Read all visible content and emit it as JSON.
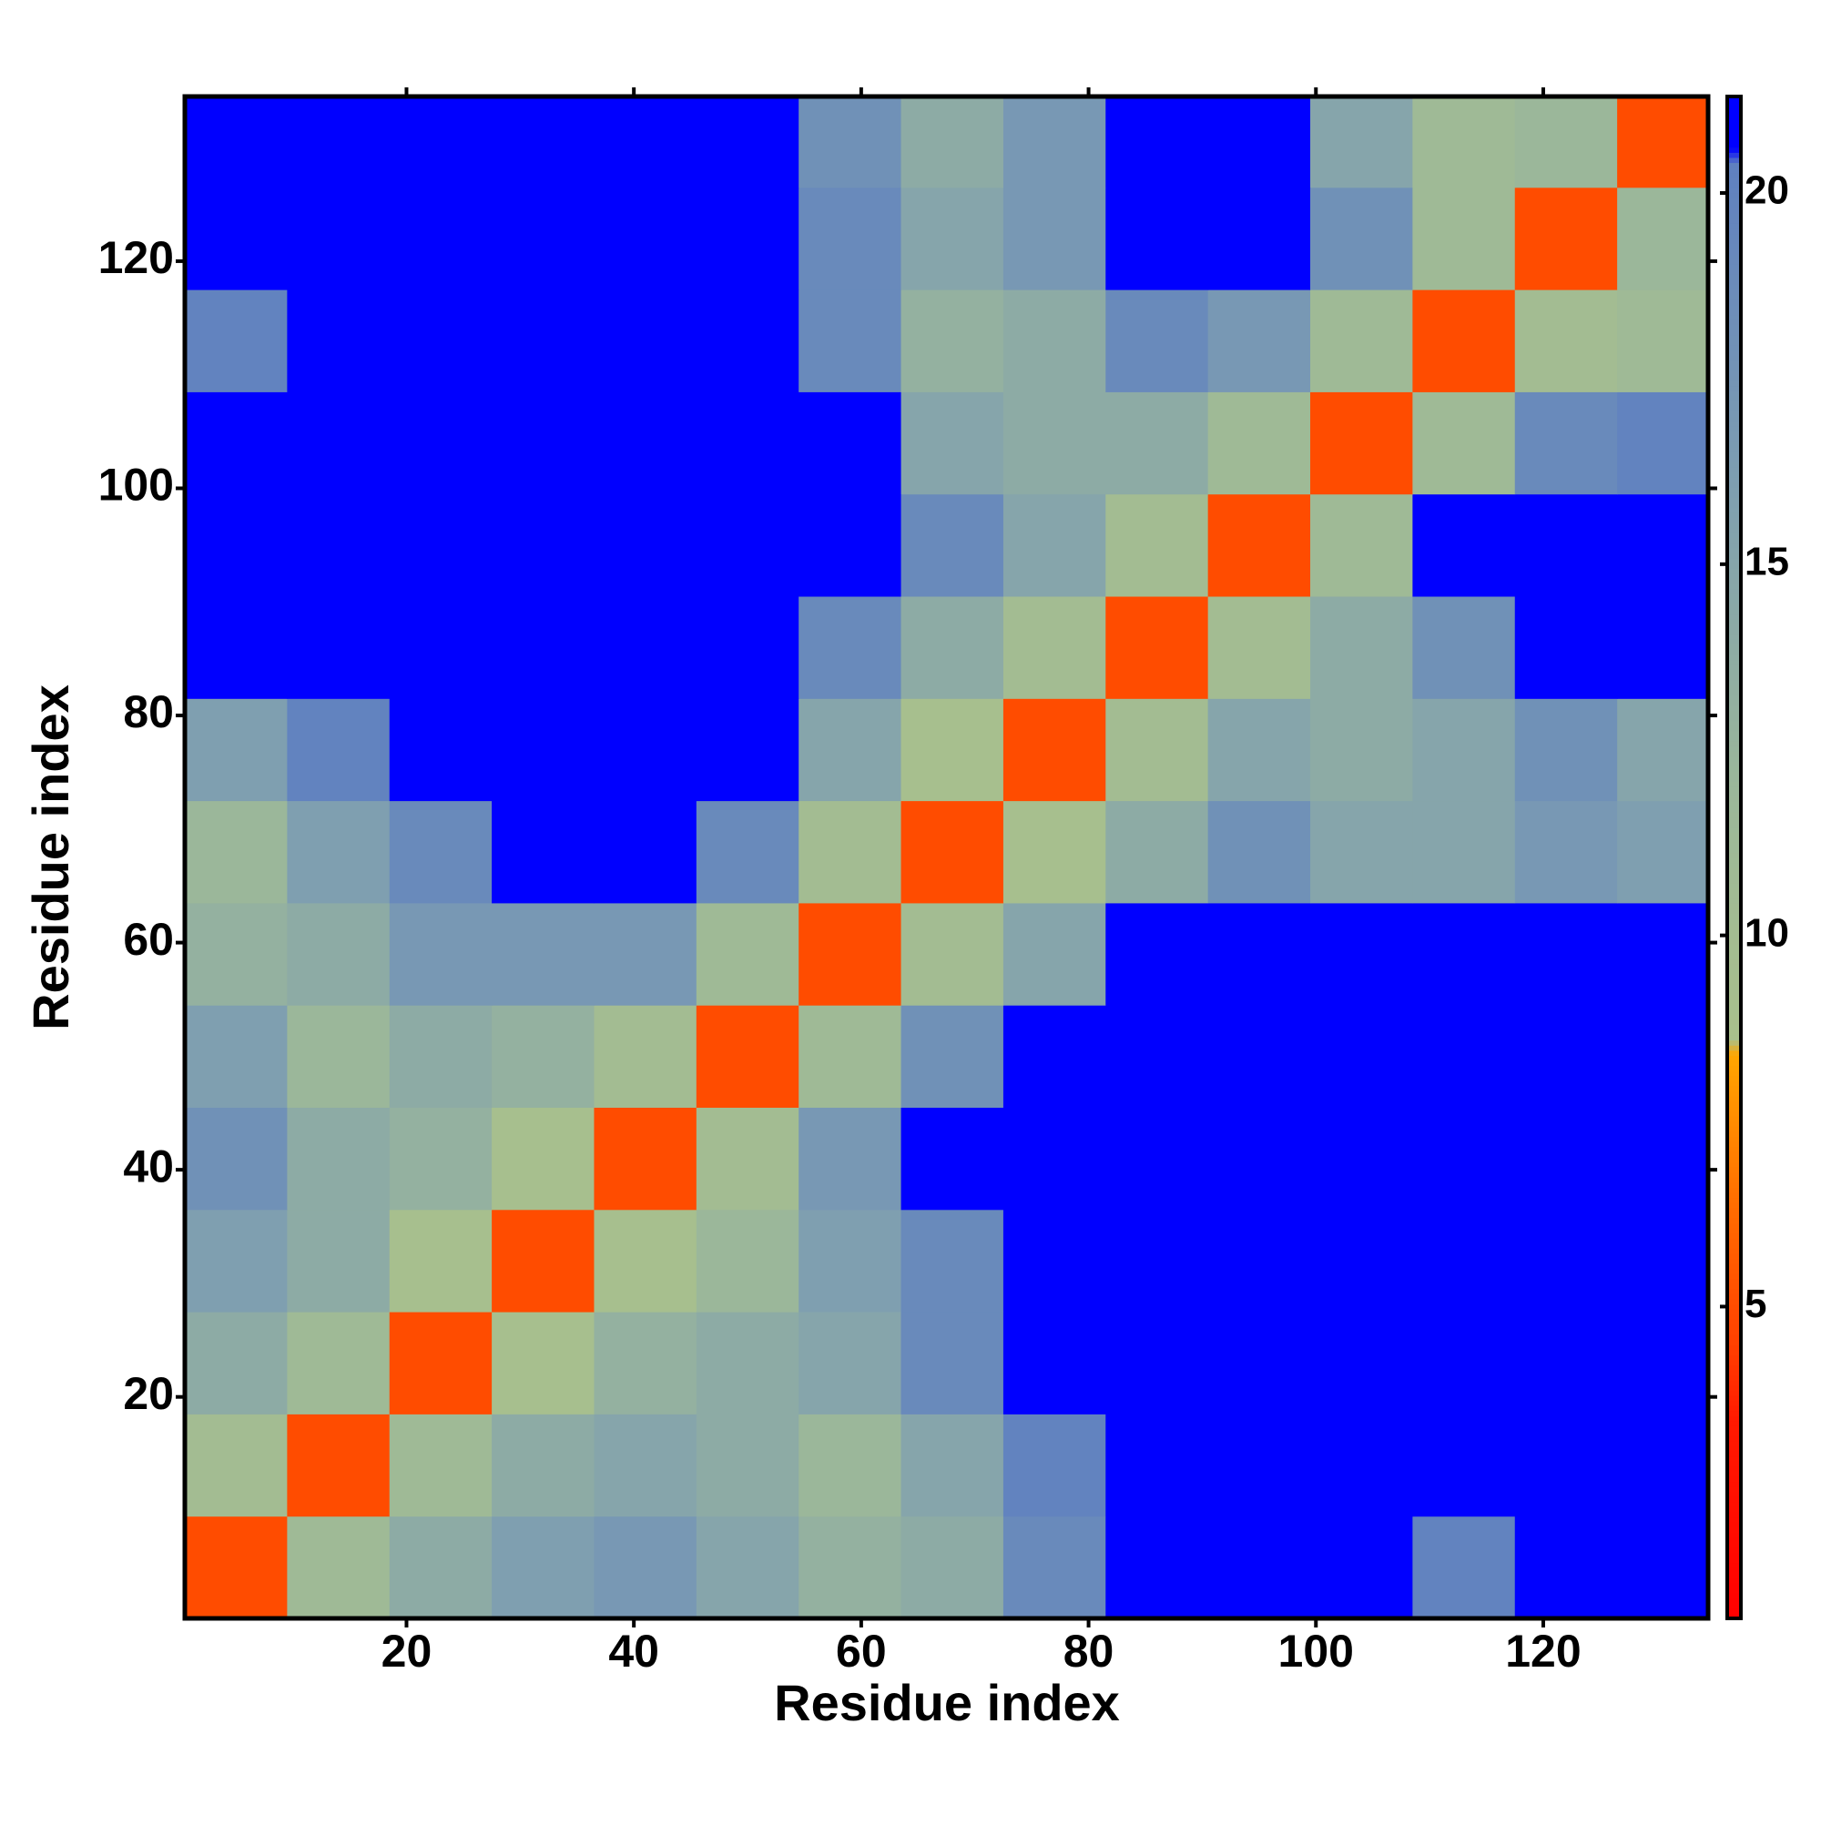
{
  "chart_data": {
    "type": "heatmap",
    "x_label": "Residue index",
    "y_label": "Residue index",
    "x": [
      5,
      14,
      23,
      32,
      41,
      50,
      59,
      68,
      77,
      86,
      95,
      104,
      113,
      122,
      131
    ],
    "y": [
      5,
      14,
      23,
      32,
      41,
      50,
      59,
      68,
      77,
      86,
      95,
      104,
      113,
      122,
      131
    ],
    "z": [
      [
        5,
        11,
        14,
        16,
        17,
        15,
        13,
        14,
        19,
        21,
        21,
        21,
        20,
        21,
        21
      ],
      [
        10,
        5,
        11,
        14,
        15,
        14,
        12,
        15,
        20,
        21,
        21,
        21,
        21,
        21,
        21
      ],
      [
        14,
        11,
        5,
        9,
        13,
        14,
        15,
        19,
        21,
        21,
        21,
        21,
        21,
        21,
        21
      ],
      [
        16,
        14,
        9,
        5,
        9,
        12,
        16,
        19,
        21,
        21,
        21,
        21,
        21,
        21,
        21
      ],
      [
        18,
        14,
        13,
        9,
        5,
        10,
        17,
        21,
        21,
        21,
        21,
        21,
        21,
        21,
        21
      ],
      [
        16,
        12,
        14,
        13,
        10,
        5,
        11,
        18,
        21,
        21,
        21,
        21,
        21,
        21,
        21
      ],
      [
        13,
        14,
        17,
        17,
        17,
        11,
        5,
        10,
        15,
        21,
        21,
        21,
        21,
        21,
        21
      ],
      [
        12,
        16,
        19,
        21,
        21,
        19,
        10,
        5,
        9,
        14,
        18,
        15,
        15,
        17,
        16
      ],
      [
        16,
        20,
        21,
        21,
        21,
        21,
        15,
        9,
        5,
        10,
        15,
        14,
        15,
        18,
        15
      ],
      [
        21,
        21,
        21,
        21,
        21,
        21,
        19,
        14,
        10,
        5,
        10,
        14,
        18,
        21,
        21
      ],
      [
        21,
        21,
        21,
        21,
        21,
        21,
        21,
        19,
        15,
        10,
        5,
        11,
        21,
        21,
        21
      ],
      [
        21,
        21,
        21,
        21,
        21,
        21,
        21,
        15,
        14,
        14,
        11,
        5,
        11,
        19,
        20
      ],
      [
        20,
        21,
        21,
        21,
        21,
        21,
        19,
        13,
        14,
        19,
        17,
        11,
        5,
        10,
        11
      ],
      [
        21,
        21,
        21,
        21,
        21,
        21,
        19,
        15,
        17,
        21,
        21,
        18,
        11,
        5,
        12
      ],
      [
        21,
        21,
        21,
        21,
        21,
        21,
        18,
        14,
        17,
        21,
        21,
        15,
        11,
        12,
        5
      ]
    ],
    "xlim": [
      0.5,
      134.5
    ],
    "ylim": [
      0.5,
      134.5
    ],
    "xticks": [
      20,
      40,
      60,
      80,
      100,
      120
    ],
    "yticks": [
      20,
      40,
      60,
      80,
      100,
      120
    ],
    "clim": [
      0.8,
      21.3
    ],
    "cticks": [
      5,
      10,
      15,
      20
    ],
    "colorscale": [
      [
        0.8,
        "#ff0000"
      ],
      [
        3.5,
        "#ff1a00"
      ],
      [
        4.5,
        "#ff4000"
      ],
      [
        6.5,
        "#ff7000"
      ],
      [
        8.4,
        "#ffa500"
      ],
      [
        8.6,
        "#a9c08c"
      ],
      [
        12,
        "#9bb79a"
      ],
      [
        16,
        "#7f9fb0"
      ],
      [
        20.4,
        "#5f80c0"
      ],
      [
        20.6,
        "#0000ff"
      ],
      [
        21.3,
        "#0000ff"
      ]
    ]
  }
}
